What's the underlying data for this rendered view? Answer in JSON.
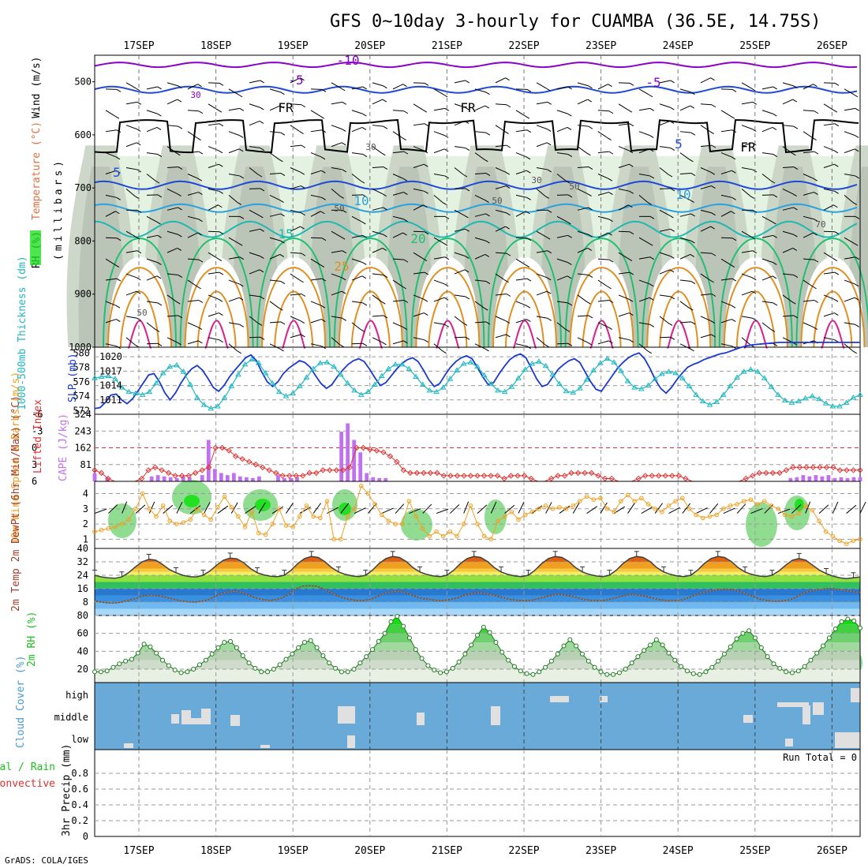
{
  "title": "GFS 0~10day 3-hourly for CUAMBA (36.5E, 14.75S)",
  "footer": "GrADS: COLA/IGES",
  "dates": [
    "17SEP",
    "18SEP",
    "19SEP",
    "20SEP",
    "21SEP",
    "22SEP",
    "23SEP",
    "24SEP",
    "25SEP",
    "26SEP"
  ],
  "colors": {
    "rh_light": "#e4f2e2",
    "rh_mid": "#c8d3c4",
    "rh_gray": "#b8c2b5",
    "rh_green": "#7cd67c",
    "rh_bright": "#22e022",
    "freeze": "#000000",
    "t_neg10": "#8a00c8",
    "t_neg5": "#1f49d6",
    "t_10": "#2aa2e0",
    "t_15": "#20b8b0",
    "t_20": "#20c070",
    "t_25": "#e09020",
    "t_30": "#d82090",
    "slp": "#1a3ad0",
    "thick": "#20b8c0",
    "cape": "#c070f0",
    "li": "#e03030",
    "wind": "#f0a020",
    "cloud": "#6aaad8",
    "cloud_gray": "#e0e0e0"
  },
  "chart_data": [
    {
      "id": "upper_air",
      "type": "contour",
      "ylabel_parts": [
        "RH (%)",
        "Temperature (°C)",
        "Wind (m/s)"
      ],
      "ylabel_sub": "(millibars)",
      "yticks": [
        "500",
        "600",
        "700",
        "800",
        "900",
        "1000"
      ],
      "ylim": [
        450,
        1000
      ],
      "contour_labels": [
        {
          "t": "-10",
          "c": "#8a00c8"
        },
        {
          "t": "-5",
          "c": "#8a00c8"
        },
        {
          "t": "-5",
          "c": "#8a00c8"
        },
        {
          "t": "FR",
          "c": "#000000"
        },
        {
          "t": "FR",
          "c": "#000000"
        },
        {
          "t": "FR",
          "c": "#000000"
        },
        {
          "t": "5",
          "c": "#1f49d6"
        },
        {
          "t": "5",
          "c": "#1f49d6"
        },
        {
          "t": "10",
          "c": "#2aa2e0"
        },
        {
          "t": "10",
          "c": "#2aa2e0"
        },
        {
          "t": "15",
          "c": "#20b8b0"
        },
        {
          "t": "20",
          "c": "#20c070"
        },
        {
          "t": "25",
          "c": "#e09020"
        },
        {
          "t": "30",
          "c": "#8a00c8"
        },
        {
          "t": "30",
          "c": "#555555"
        },
        {
          "t": "30",
          "c": "#555555"
        },
        {
          "t": "50",
          "c": "#555555"
        },
        {
          "t": "50",
          "c": "#555555"
        },
        {
          "t": "50",
          "c": "#555555"
        },
        {
          "t": "50",
          "c": "#555555"
        },
        {
          "t": "70",
          "c": "#555555"
        }
      ]
    },
    {
      "id": "slp_thickness",
      "type": "line",
      "ylabel_left": "1000-500mb Thickness (dm)",
      "ylabel_right": "SLP (mb)",
      "yticks_left": [
        "580",
        "578",
        "576",
        "574",
        "572"
      ],
      "yticks_right": [
        "1020",
        "1017",
        "1014",
        "1011"
      ],
      "slp_series": [
        1009.5,
        1010,
        1010.5,
        1011,
        1011.5,
        1012,
        1012.5,
        1013,
        1013,
        1012,
        1011,
        1010.5,
        1010,
        1010.5,
        1011,
        1012,
        1013,
        1014,
        1015,
        1016,
        1016,
        1015,
        1013.5,
        1012,
        1012,
        1013,
        1014.5,
        1016,
        1017,
        1017.5,
        1018,
        1017,
        1015.5,
        1014,
        1013,
        1014,
        1015.5,
        1017,
        1018.5,
        1019,
        1020,
        1020.5,
        1019,
        1017,
        1015,
        1014,
        1013.5,
        1015,
        1016.5,
        1018,
        1019,
        1019.5,
        1019,
        1018,
        1016,
        1014,
        1013,
        1014,
        1015.5,
        1017,
        1018,
        1019,
        1019.5,
        1019,
        1017.5,
        1015.5,
        1014,
        1013.5,
        1015,
        1017,
        1018.5,
        1019.5,
        1020,
        1019.5,
        1018,
        1016,
        1014,
        1013,
        1014,
        1015.5,
        1017,
        1018.5,
        1019.5,
        1019,
        1017,
        1015,
        1013,
        1012,
        1012.5,
        1014,
        1016,
        1017.5,
        1019,
        1020,
        1020.5,
        1019.5,
        1017.5,
        1015.5,
        1014,
        1013,
        1012,
        1013,
        1014,
        1015.5,
        1017,
        1018.5,
        1019.5,
        1020,
        1020.5,
        1021,
        1020.5,
        1019,
        1017,
        1016,
        1015,
        1016,
        1017.5,
        1019,
        1020,
        1020.5,
        1021,
        1021.5,
        1022,
        1022.5,
        1022,
        1021,
        1020,
        1019,
        1018.5,
        1018,
        1018.5,
        1019,
        1020,
        1021,
        1022,
        1023,
        1023.5,
        1024,
        1024.5,
        1025,
        1025.5,
        1026,
        1026.5,
        1027,
        1027.5,
        1028
      ],
      "slp_values": [
        1009.2,
        1009.4,
        1010.5,
        1012,
        1012.2,
        1011,
        1010.2,
        1011.2,
        1012.8,
        1014.5,
        1016.2,
        1016.5,
        1014.8,
        1012.5,
        1011,
        1012.5,
        1014.5,
        1016.2,
        1017.5,
        1018.2,
        1017.2,
        1015.5,
        1013.6,
        1012.8,
        1014,
        1015.8,
        1017.2,
        1018.5,
        1019.8,
        1020.4,
        1019.2,
        1016.8,
        1014.8,
        1013.8,
        1014.8,
        1016.5,
        1017.6,
        1018.4,
        1019.2,
        1018.8,
        1017.8,
        1016,
        1014.4,
        1013.4,
        1014.2,
        1015.8,
        1017.2,
        1018.4,
        1019.2,
        1019.6,
        1019,
        1017.4,
        1015.6,
        1014,
        1014.6,
        1016,
        1017.4,
        1018.6,
        1019.4,
        1019.8,
        1019,
        1017.2,
        1015.2,
        1013.8,
        1014.4,
        1016.2,
        1017.8,
        1019,
        1019.8,
        1020.2,
        1019.6,
        1017.8,
        1015.8,
        1014.2,
        1014.6,
        1016.4,
        1018,
        1019.4,
        1020.2,
        1020.6,
        1019.8,
        1017.6,
        1015.4,
        1013.8,
        1014.2,
        1015.8,
        1017.4,
        1018.4,
        1019.2,
        1019.6,
        1018.8,
        1016.8,
        1014.8,
        1013.2,
        1012.8,
        1014.4,
        1016,
        1017.6,
        1018.8,
        1019.8,
        1020.4,
        1020.8,
        1019.6,
        1017.6,
        1015.2,
        1013.4,
        1012.4,
        1013.6,
        1015.2,
        1016.6,
        1017.8,
        1018.4,
        1018.8,
        1019.4,
        1019.8,
        1020.2,
        1020.6,
        1020.8,
        1021.2,
        1021.6,
        1022,
        1022.3,
        1022.5,
        1022.6,
        1022.7,
        1022.8,
        1022.9,
        1023,
        1023,
        1023,
        1023,
        1023,
        1023,
        1023,
        1023,
        1023,
        1023,
        1023,
        1023,
        1023,
        1023,
        1023,
        1023
      ],
      "thick_values": [
        576.5,
        576.7,
        576.8,
        576.4,
        575.2,
        574.6,
        574.4,
        574.2,
        574.6,
        575.8,
        577.2,
        578.1,
        578.3,
        577.4,
        575.6,
        573.8,
        572.8,
        572.3,
        572.6,
        573.8,
        575.4,
        577,
        578.4,
        579.1,
        578.6,
        577.2,
        575.8,
        574.6,
        574,
        574.4,
        575.4,
        576.6,
        577.8,
        578.6,
        578.7,
        578.1,
        577,
        575.8,
        574.8,
        574.2,
        574.6,
        575.6,
        576.8,
        577.8,
        578.4,
        578.4,
        577.8,
        576.7,
        575.6,
        574.8,
        574.6,
        575.2,
        576.4,
        577.6,
        578.5,
        578.7,
        578.1,
        576.9,
        575.7,
        574.8,
        574.6,
        575.3,
        576.5,
        577.7,
        578.5,
        578.8,
        578.2,
        577,
        575.7,
        574.7,
        574.5,
        575.1,
        576.3,
        577.6,
        578.6,
        579.2,
        578.7,
        577.5,
        576.1,
        575.2,
        575,
        575.5,
        576.4,
        577.1,
        577.4,
        577.2,
        576.5,
        575.4,
        574.2,
        573.3,
        572.8,
        573.2,
        574.2,
        575.4,
        576.6,
        577.4,
        577.7,
        577.4,
        576.5,
        575.3,
        574.2,
        573.4,
        573.1,
        573.3,
        573.7,
        574,
        573.6,
        573,
        572.6,
        572.6,
        573.1,
        573.8,
        574.2
      ]
    },
    {
      "id": "cape_li",
      "type": "bar+line",
      "ylabel_left": "Lifted Index",
      "ylabel_right": "CAPE (J/kg)",
      "yticks_left": [
        "-6",
        "-3",
        "0",
        "3",
        "6"
      ],
      "yticks_right": [
        "324",
        "243",
        "162",
        "81"
      ],
      "cape_values": [
        40,
        0,
        18,
        0,
        0,
        0,
        0,
        0,
        0,
        24,
        30,
        24,
        20,
        16,
        24,
        20,
        0,
        30,
        200,
        60,
        40,
        30,
        40,
        24,
        20,
        16,
        24,
        0,
        0,
        30,
        16,
        16,
        20,
        0,
        0,
        0,
        0,
        0,
        0,
        240,
        280,
        200,
        140,
        40,
        20,
        16,
        16,
        0,
        0,
        0,
        0,
        0,
        0,
        0,
        0,
        0,
        0,
        0,
        0,
        0,
        0,
        0,
        0,
        0,
        0,
        0,
        0,
        0,
        0,
        0,
        0,
        0,
        0,
        0,
        0,
        0,
        0,
        0,
        0,
        0,
        0,
        0,
        0,
        0,
        0,
        0,
        0,
        0,
        0,
        0,
        0,
        0,
        0,
        0,
        0,
        0,
        0,
        0,
        0,
        0,
        0,
        0,
        0,
        0,
        0,
        0,
        0,
        0,
        0,
        0,
        16,
        20,
        30,
        24,
        30,
        24,
        30,
        16,
        20,
        16,
        20,
        20
      ],
      "li_values": [
        4,
        4.5,
        5.5,
        6,
        6,
        6,
        6,
        5.5,
        4,
        3.5,
        4,
        4.5,
        5,
        5,
        5,
        4.5,
        4,
        3.5,
        0,
        0,
        0.5,
        1.5,
        2,
        2.5,
        3,
        3.5,
        4,
        4.5,
        5,
        5,
        5,
        5,
        4.5,
        4.5,
        4,
        4,
        4,
        4,
        3.5,
        0,
        0,
        0.3,
        0.5,
        0.8,
        1.5,
        2.5,
        4,
        4.5,
        4.5,
        4.5,
        4.5,
        4.5,
        5,
        5,
        5,
        5,
        5,
        5,
        5,
        5,
        5,
        5.5,
        5,
        5,
        5,
        5.5,
        6,
        6,
        5.5,
        5,
        5,
        4.5,
        4.5,
        4.5,
        4.5,
        5,
        5.5,
        5.5,
        6,
        6,
        6,
        5.5,
        5,
        5,
        5,
        5,
        5,
        5,
        5.5,
        6,
        6,
        6,
        6,
        6,
        6,
        6,
        6,
        5.5,
        5,
        4.5,
        4.5,
        4.5,
        4.5,
        4,
        3.5,
        3.5,
        3.5,
        3.5,
        3.5,
        3.5,
        3.5,
        4,
        4,
        4,
        4
      ]
    },
    {
      "id": "wind10m",
      "type": "line",
      "ylabel": "10m Wind Speed & Barbs (m/s)",
      "yticks": [
        "4",
        "3",
        "2",
        "1"
      ],
      "values": [
        1.5,
        1.6,
        1.7,
        1.8,
        2,
        2.3,
        3,
        4,
        3,
        2.5,
        3.2,
        2.2,
        2,
        2.1,
        2.3,
        3,
        2.6,
        2.3,
        3.1,
        3.8,
        3.1,
        2.5,
        1.8,
        2.8,
        1.4,
        1.3,
        2,
        3,
        1.9,
        1.8,
        2.5,
        3.2,
        2.5,
        2.4,
        3.5,
        1,
        1,
        2.5,
        3,
        4.5,
        4,
        3.3,
        2.6,
        2.2,
        2,
        2,
        3.5,
        2.5,
        1.7,
        1.2,
        1.5,
        1.2,
        1.5,
        1.2,
        2,
        3.2,
        2,
        1.2,
        1,
        2.2,
        2.5,
        2.8,
        2.3,
        2.6,
        2.8,
        3,
        3.2,
        3,
        3.1,
        3,
        3.2,
        3.5,
        3.8,
        3.6,
        3.7,
        3,
        2.8,
        3.5,
        3.9,
        3.5,
        3.7,
        3.3,
        3,
        2.8,
        3.2,
        3.5,
        3.7,
        3,
        2.6,
        2.4,
        2.5,
        2.6,
        3,
        3.2,
        3.3,
        3.5,
        3.6,
        3.3,
        3.5,
        3.2,
        3,
        2.6,
        2.5,
        2.7,
        3.2,
        2.9,
        2.2,
        1.5,
        1.2,
        0.9,
        0.7,
        0.9,
        1
      ]
    },
    {
      "id": "temp_dewpoint",
      "type": "area",
      "ylabel": "2m Temp 2m DewPt (6hr Min/Max) (°C)",
      "yticks": [
        "40",
        "32",
        "24",
        "16",
        "8"
      ],
      "temp_values": [
        24,
        23,
        22.5,
        22.2,
        23,
        25.5,
        29,
        32,
        33.5,
        33,
        30.5,
        27.5,
        25.5,
        24,
        23.2,
        23,
        24,
        26.5,
        30,
        33,
        34.2,
        33.8,
        31.5,
        28,
        25.5,
        24.2,
        23.4,
        23.2,
        24,
        27,
        31,
        34,
        35.2,
        34.6,
        32,
        28.5,
        26,
        24.5,
        23.6,
        23.2,
        24,
        27,
        31,
        34,
        35.2,
        34.6,
        32.2,
        28.5,
        26,
        24.5,
        23.6,
        23.2,
        24,
        27,
        31,
        34,
        35.2,
        34.6,
        32.2,
        28.5,
        26,
        24.5,
        23.6,
        23.2,
        24,
        27,
        31,
        34,
        35.2,
        34.6,
        32.2,
        28.5,
        26,
        24.5,
        23.6,
        23.2,
        24,
        27,
        31,
        34,
        35.2,
        34.6,
        32.2,
        28.5,
        26,
        24.5,
        23.6,
        23.2,
        24,
        27,
        31,
        34,
        35.2,
        34.6,
        32.2,
        28.5,
        26,
        24.5,
        23.6,
        23.2,
        24,
        26.5,
        30,
        33,
        34,
        33,
        30,
        27,
        25,
        23.5,
        22.5,
        22,
        22.5,
        23
      ],
      "dew_values": [
        8.5,
        8,
        7.5,
        7.5,
        8,
        9,
        10,
        11.5,
        12,
        12,
        11.5,
        10.5,
        9.5,
        8.5,
        8.2,
        8,
        8.5,
        9.5,
        11.5,
        13,
        14,
        14.5,
        13.5,
        12,
        10.5,
        9.5,
        9,
        9.5,
        10.5,
        13,
        16,
        17.5,
        17.8,
        17.5,
        16,
        14,
        12,
        10.5,
        9.5,
        9,
        9,
        9.5,
        11,
        13,
        14,
        14.5,
        14,
        12.5,
        11,
        10,
        9.5,
        9,
        9,
        9.5,
        10.5,
        12,
        13,
        13.5,
        13.2,
        12.5,
        11.5,
        10.5,
        9.5,
        9,
        8.8,
        9,
        10,
        11,
        12,
        12.5,
        12.2,
        11.5,
        10.5,
        9.5,
        9,
        8.8,
        9,
        10,
        11,
        12,
        12.5,
        12.2,
        11.5,
        10.5,
        9.5,
        9,
        8.8,
        9,
        10,
        11.5,
        13,
        14,
        15,
        15.5,
        15.8,
        15.5,
        14.5,
        13,
        11.5,
        10,
        9,
        8.5,
        8.5,
        9,
        10,
        12,
        14,
        15,
        15.5,
        16,
        16,
        15.5,
        14.8,
        14.2,
        13.8
      ]
    },
    {
      "id": "rh2m",
      "type": "area",
      "ylabel": "2m RH (%)",
      "yticks": [
        "80",
        "60",
        "40",
        "20"
      ],
      "values": [
        17,
        17,
        18,
        22,
        26,
        29,
        31,
        38,
        48,
        45,
        38,
        30,
        24,
        19,
        16,
        17,
        20,
        25,
        30,
        37,
        44,
        50,
        51,
        44,
        35,
        27,
        21,
        17,
        17,
        20,
        25,
        31,
        37,
        44,
        50,
        52,
        44,
        35,
        27,
        21,
        17,
        17,
        20,
        27,
        34,
        42,
        51,
        60,
        73,
        79,
        68,
        55,
        42,
        32,
        24,
        19,
        16,
        17,
        21,
        28,
        37,
        47,
        58,
        67,
        61,
        50,
        39,
        30,
        23,
        18,
        15,
        14,
        17,
        22,
        29,
        37,
        46,
        53,
        46,
        37,
        29,
        22,
        17,
        14,
        14,
        16,
        20,
        27,
        34,
        41,
        47,
        53,
        47,
        38,
        30,
        23,
        18,
        15,
        14,
        17,
        22,
        29,
        37,
        45,
        54,
        60,
        63,
        55,
        44,
        34,
        26,
        21,
        17,
        16,
        18,
        23,
        30,
        38,
        46,
        55,
        65,
        73,
        76,
        74,
        66
      ]
    },
    {
      "id": "cloud_cover",
      "type": "bar",
      "ylabel": "Cloud Cover (%)",
      "yticks": [
        "high",
        "middle",
        "low"
      ]
    },
    {
      "id": "precip",
      "type": "bar",
      "ylabel": "3hr Precip (mm)",
      "ylabel_legend_1": "Total / Rain",
      "ylabel_legend_2": "Convective",
      "yticks": [
        "0.8",
        "0.6",
        "0.4",
        "0.2",
        "0"
      ],
      "ylim": [
        0,
        1
      ],
      "run_total": "Run Total = 0",
      "values": []
    }
  ]
}
